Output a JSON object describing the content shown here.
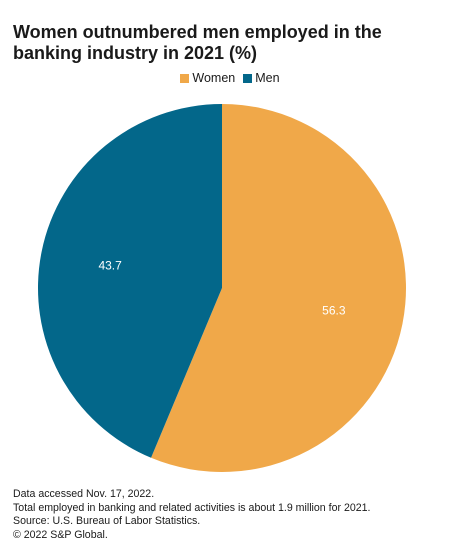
{
  "chart_data": {
    "type": "pie",
    "title": "Women outnumbered men employed in the banking industry in 2021 (%)",
    "categories": [
      "Women",
      "Men"
    ],
    "values": [
      56.3,
      43.7
    ],
    "data_labels": [
      "56.3",
      "43.7"
    ],
    "colors": [
      "#f0a849",
      "#03678a"
    ],
    "legend": {
      "placement": "top-center",
      "entries": [
        "Women",
        "Men"
      ]
    }
  },
  "footnotes": {
    "line1": "Data accessed Nov. 17, 2022.",
    "line2": "Total employed in banking and related activities is about 1.9 million for 2021.",
    "line3": "Source: U.S. Bureau of Labor Statistics.",
    "line4": "© 2022 S&P Global."
  }
}
